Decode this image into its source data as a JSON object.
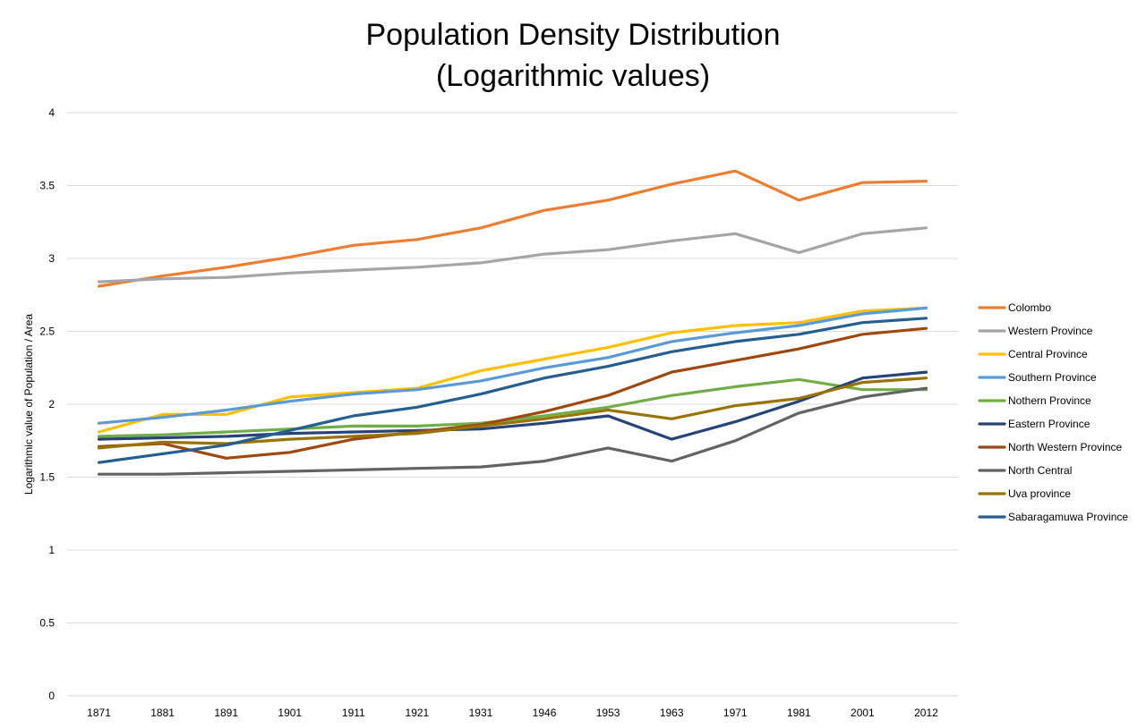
{
  "chart_data": {
    "type": "line",
    "title": [
      "Population Density Distribution",
      "(Logarithmic values)"
    ],
    "xlabel": "",
    "ylabel": "Logarithmic value of Population / Area",
    "categories": [
      "1871",
      "1881",
      "1891",
      "1901",
      "1911",
      "1921",
      "1931",
      "1946",
      "1953",
      "1963",
      "1971",
      "1981",
      "2001",
      "2012"
    ],
    "ylim": [
      0,
      4
    ],
    "yticks": [
      0,
      0.5,
      1,
      1.5,
      2,
      2.5,
      3,
      3.5,
      4
    ],
    "ytick_labels": [
      "0",
      "0.5",
      "1",
      "1.5",
      "2",
      "2.5",
      "3",
      "3.5",
      "4"
    ],
    "grid": true,
    "legend_position": "right",
    "series": [
      {
        "name": "Colombo",
        "color": "#ED7D31",
        "values": [
          2.81,
          2.88,
          2.94,
          3.01,
          3.09,
          3.13,
          3.21,
          3.33,
          3.4,
          3.51,
          3.6,
          3.4,
          3.52,
          3.53
        ]
      },
      {
        "name": "Western Province",
        "color": "#A5A5A5",
        "values": [
          2.84,
          2.86,
          2.87,
          2.9,
          2.92,
          2.94,
          2.97,
          3.03,
          3.06,
          3.12,
          3.17,
          3.04,
          3.17,
          3.21
        ]
      },
      {
        "name": "Central Province",
        "color": "#FFC000",
        "values": [
          1.81,
          1.93,
          1.93,
          2.05,
          2.08,
          2.11,
          2.23,
          2.31,
          2.39,
          2.49,
          2.54,
          2.56,
          2.64,
          2.66
        ]
      },
      {
        "name": "Southern Province",
        "color": "#5B9BD5",
        "values": [
          1.87,
          1.91,
          1.96,
          2.02,
          2.07,
          2.1,
          2.16,
          2.25,
          2.32,
          2.43,
          2.49,
          2.54,
          2.62,
          2.66
        ]
      },
      {
        "name": "Nothern Province",
        "color": "#70AD47",
        "values": [
          1.78,
          1.79,
          1.81,
          1.83,
          1.85,
          1.85,
          1.87,
          1.92,
          1.98,
          2.06,
          2.12,
          2.17,
          2.1,
          2.1
        ]
      },
      {
        "name": "Eastern Province",
        "color": "#264478",
        "values": [
          1.76,
          1.77,
          1.78,
          1.8,
          1.81,
          1.82,
          1.83,
          1.87,
          1.92,
          1.76,
          1.88,
          2.02,
          2.18,
          2.22
        ]
      },
      {
        "name": "North Western Province",
        "color": "#9E480E",
        "values": [
          1.71,
          1.73,
          1.63,
          1.67,
          1.76,
          1.81,
          1.86,
          1.95,
          2.06,
          2.22,
          2.3,
          2.38,
          2.48,
          2.52
        ]
      },
      {
        "name": "North Central",
        "color": "#636363",
        "values": [
          1.52,
          1.52,
          1.53,
          1.54,
          1.55,
          1.56,
          1.57,
          1.61,
          1.7,
          1.61,
          1.75,
          1.94,
          2.05,
          2.11
        ]
      },
      {
        "name": "Uva province",
        "color": "#997300",
        "values": [
          1.7,
          1.74,
          1.73,
          1.76,
          1.78,
          1.8,
          1.85,
          1.9,
          1.96,
          1.9,
          1.99,
          2.04,
          2.15,
          2.18
        ]
      },
      {
        "name": "Sabaragamuwa Province",
        "color": "#255E91",
        "values": [
          1.6,
          1.66,
          1.72,
          1.82,
          1.92,
          1.98,
          2.07,
          2.18,
          2.26,
          2.36,
          2.43,
          2.48,
          2.56,
          2.59
        ]
      }
    ]
  }
}
